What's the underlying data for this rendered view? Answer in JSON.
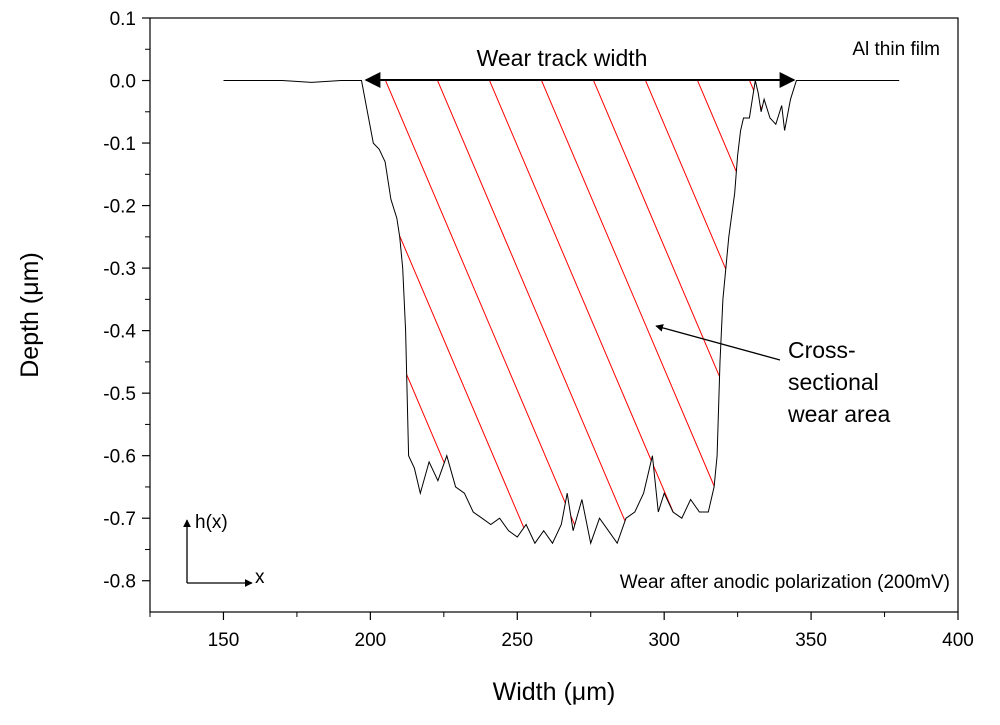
{
  "chart_data": {
    "type": "line",
    "xlabel": "Width (μm)",
    "ylabel": "Depth (μm)",
    "xlim": [
      125,
      400
    ],
    "ylim": [
      -0.85,
      0.1
    ],
    "x_ticks": [
      150,
      200,
      250,
      300,
      350,
      400
    ],
    "x_tick_labels": [
      "150",
      "200",
      "250",
      "300",
      "350",
      "400"
    ],
    "y_ticks": [
      0.1,
      0.0,
      -0.1,
      -0.2,
      -0.3,
      -0.4,
      -0.5,
      -0.6,
      -0.7,
      -0.8
    ],
    "y_tick_labels": [
      "0.1",
      "0.0",
      "-0.1",
      "-0.2",
      "-0.3",
      "-0.4",
      "-0.5",
      "-0.6",
      "-0.7",
      "-0.8"
    ],
    "series": [
      {
        "name": "wear track profile",
        "color": "#000000",
        "x": [
          150,
          160,
          170,
          180,
          190,
          197,
          199,
          201,
          203,
          205,
          207,
          209,
          210,
          211,
          212,
          213,
          215,
          217,
          220,
          223,
          226,
          229,
          232,
          235,
          238,
          241,
          244,
          247,
          250,
          253,
          256,
          259,
          262,
          265,
          267,
          269,
          272,
          275,
          278,
          281,
          284,
          287,
          290,
          293,
          296,
          298,
          300,
          303,
          306,
          309,
          312,
          315,
          317,
          318,
          319,
          320,
          322,
          324,
          325,
          326,
          327,
          328,
          329,
          330,
          331,
          332,
          333,
          334,
          336,
          338,
          340,
          341,
          343,
          345,
          350,
          360,
          370,
          380
        ],
        "y": [
          0.0,
          0.0,
          0.0,
          -0.003,
          0.0,
          0.0,
          -0.05,
          -0.1,
          -0.11,
          -0.13,
          -0.19,
          -0.22,
          -0.25,
          -0.3,
          -0.4,
          -0.6,
          -0.62,
          -0.66,
          -0.61,
          -0.64,
          -0.6,
          -0.65,
          -0.66,
          -0.69,
          -0.7,
          -0.71,
          -0.7,
          -0.72,
          -0.73,
          -0.71,
          -0.74,
          -0.72,
          -0.74,
          -0.71,
          -0.66,
          -0.72,
          -0.67,
          -0.74,
          -0.7,
          -0.72,
          -0.74,
          -0.7,
          -0.69,
          -0.66,
          -0.6,
          -0.69,
          -0.66,
          -0.69,
          -0.7,
          -0.67,
          -0.69,
          -0.69,
          -0.65,
          -0.6,
          -0.45,
          -0.35,
          -0.25,
          -0.18,
          -0.12,
          -0.08,
          -0.06,
          -0.06,
          -0.06,
          -0.03,
          0.0,
          -0.02,
          -0.05,
          -0.03,
          -0.06,
          -0.07,
          -0.04,
          -0.08,
          -0.03,
          0.0,
          0.0,
          0.0,
          0.0,
          0.0
        ]
      }
    ],
    "hatch_color": "#ff0000",
    "annotations": {
      "wear_track_width": "Wear track width",
      "material": "Al thin film",
      "area_line1": "Cross-",
      "area_line2": "sectional",
      "area_line3": "wear area",
      "condition": "Wear after anodic polarization (200mV)",
      "h_axis": "h(x)",
      "x_axis": "x"
    }
  }
}
